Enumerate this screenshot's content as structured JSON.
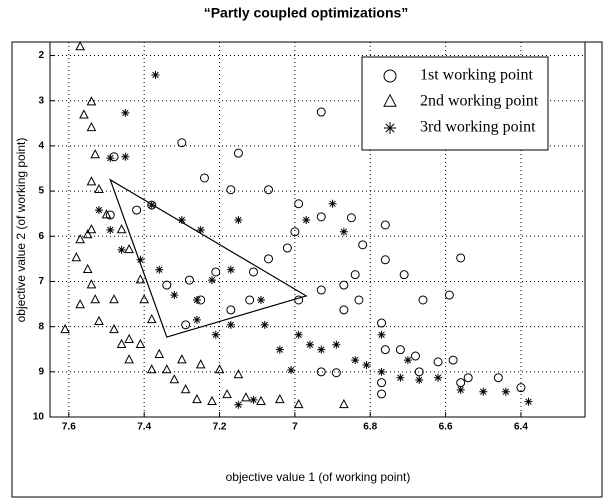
{
  "chart_data": {
    "type": "scatter",
    "title": "“Partly coupled optimizations”",
    "x_label": "objective value 1 (of working point)",
    "y_label": "objective value 2 (of working point)",
    "xlim": [
      7.65,
      6.23
    ],
    "ylim": [
      1.7,
      10
    ],
    "xticks": [
      7.6,
      7.4,
      7.2,
      7,
      6.8,
      6.6,
      6.4
    ],
    "yticks": [
      2,
      3,
      4,
      5,
      6,
      7,
      8,
      9,
      10
    ],
    "grid": true,
    "legend": "upper right",
    "series": [
      {
        "name": "1st working point",
        "marker": "circle",
        "color": "#000000",
        "x": [
          7.15,
          7.24,
          7.17,
          7.07,
          6.99,
          6.93,
          6.85,
          7.0,
          7.02,
          7.07,
          7.11,
          7.21,
          7.28,
          7.34,
          7.25,
          7.17,
          7.29,
          7.12,
          6.99,
          6.93,
          6.87,
          6.84,
          6.83,
          6.87,
          6.77,
          6.76,
          6.72,
          6.68,
          6.67,
          6.62,
          6.58,
          6.56,
          6.77,
          6.89,
          6.93,
          6.71,
          6.76,
          6.66,
          6.59,
          6.56,
          6.54,
          6.46,
          6.4,
          6.77,
          6.93,
          7.3,
          7.48,
          7.49,
          7.42,
          7.38,
          6.76,
          6.82
        ],
        "values": [
          4.16,
          4.71,
          4.97,
          4.97,
          5.28,
          5.57,
          5.59,
          5.9,
          6.26,
          6.5,
          6.79,
          6.79,
          6.97,
          7.08,
          7.41,
          7.63,
          7.96,
          7.41,
          7.41,
          7.19,
          7.08,
          6.85,
          7.41,
          7.63,
          7.92,
          8.51,
          8.51,
          8.65,
          9.0,
          8.78,
          8.74,
          9.24,
          9.24,
          9.02,
          9.0,
          6.85,
          6.52,
          7.41,
          7.3,
          6.48,
          9.13,
          9.13,
          9.35,
          9.49,
          3.25,
          3.93,
          4.24,
          5.53,
          5.42,
          5.31,
          5.75,
          6.19
        ]
      },
      {
        "name": "2nd working point",
        "marker": "triangle",
        "color": "#000000",
        "x": [
          7.57,
          7.54,
          7.56,
          7.54,
          7.53,
          7.54,
          7.52,
          7.57,
          7.55,
          7.54,
          7.58,
          7.55,
          7.54,
          7.53,
          7.57,
          7.52,
          7.48,
          7.46,
          7.44,
          7.5,
          7.46,
          7.44,
          7.41,
          7.4,
          7.38,
          7.36,
          7.34,
          7.32,
          7.29,
          7.26,
          7.22,
          7.18,
          7.13,
          7.09,
          7.04,
          6.99,
          6.87,
          7.3,
          7.25,
          7.2,
          7.38,
          7.15,
          7.41,
          7.44,
          7.48,
          7.61
        ],
        "values": [
          1.81,
          3.03,
          3.32,
          3.6,
          4.2,
          4.8,
          4.97,
          6.08,
          5.97,
          5.86,
          6.48,
          6.74,
          7.08,
          7.41,
          7.52,
          7.89,
          8.07,
          8.4,
          8.29,
          5.53,
          5.86,
          6.3,
          6.97,
          7.41,
          7.85,
          8.62,
          8.96,
          9.18,
          9.4,
          9.62,
          9.66,
          9.51,
          9.58,
          9.66,
          9.62,
          9.73,
          9.73,
          8.74,
          8.85,
          8.96,
          8.96,
          9.07,
          8.4,
          8.74,
          7.41,
          8.07
        ]
      },
      {
        "name": "3rd working point",
        "marker": "star",
        "color": "#000000",
        "x": [
          7.37,
          7.45,
          7.49,
          7.45,
          7.52,
          7.49,
          7.46,
          7.41,
          7.36,
          7.32,
          7.26,
          7.22,
          7.17,
          7.09,
          7.08,
          6.99,
          6.96,
          6.93,
          6.89,
          6.84,
          6.81,
          6.77,
          6.72,
          6.67,
          6.62,
          6.56,
          6.5,
          6.44,
          6.38,
          7.15,
          7.25,
          7.3,
          7.38,
          6.97,
          6.9,
          6.87,
          7.04,
          7.01,
          7.17,
          7.21,
          6.77,
          6.7,
          7.15,
          7.11,
          7.26
        ],
        "values": [
          2.43,
          3.27,
          4.27,
          4.24,
          5.42,
          5.86,
          6.3,
          6.52,
          6.74,
          7.3,
          7.41,
          6.97,
          6.74,
          7.41,
          7.96,
          8.18,
          8.4,
          8.51,
          8.4,
          8.74,
          8.85,
          9.0,
          9.13,
          9.18,
          9.13,
          9.4,
          9.44,
          9.44,
          9.66,
          5.64,
          5.86,
          5.64,
          5.31,
          5.64,
          5.28,
          5.9,
          8.51,
          8.96,
          7.96,
          8.18,
          8.18,
          8.74,
          9.73,
          9.62,
          7.85
        ]
      }
    ],
    "shapes": [
      {
        "x": [
          7.49,
          6.97,
          7.34
        ],
        "y": [
          4.75,
          7.32,
          8.23
        ],
        "color": "#000000"
      }
    ]
  }
}
